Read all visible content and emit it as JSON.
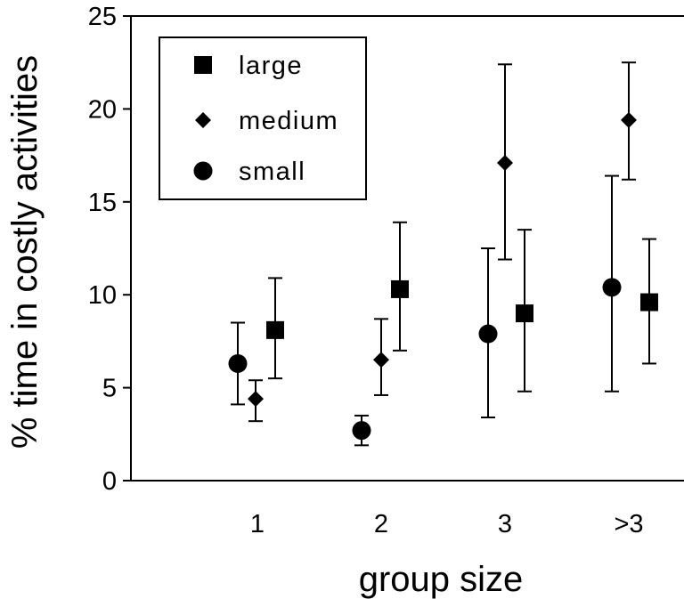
{
  "chart_data": {
    "type": "scatter",
    "xlabel": "group size",
    "ylabel": "% time in costly activities",
    "categories": [
      "1",
      "2",
      "3",
      ">3"
    ],
    "ylim": [
      0,
      25
    ],
    "yticks": [
      0,
      5,
      10,
      15,
      20,
      25
    ],
    "grid": false,
    "legend_position": "top-left",
    "series": [
      {
        "name": "large",
        "marker": "square",
        "values": [
          8.1,
          10.3,
          9.0,
          9.6
        ],
        "err_low": [
          5.5,
          7.0,
          4.8,
          6.3
        ],
        "err_high": [
          10.9,
          13.9,
          13.5,
          13.0
        ]
      },
      {
        "name": "medium",
        "marker": "diamond",
        "values": [
          4.4,
          6.5,
          17.1,
          19.4
        ],
        "err_low": [
          3.2,
          4.6,
          11.9,
          16.2
        ],
        "err_high": [
          5.4,
          8.7,
          22.4,
          22.5
        ]
      },
      {
        "name": "small",
        "marker": "circle",
        "values": [
          6.3,
          2.7,
          7.9,
          10.4
        ],
        "err_low": [
          4.1,
          1.9,
          3.4,
          4.8
        ],
        "err_high": [
          8.5,
          3.5,
          12.5,
          16.4
        ]
      }
    ],
    "legend_order": [
      "large",
      "medium",
      "small"
    ],
    "marker_color": "#000000"
  }
}
